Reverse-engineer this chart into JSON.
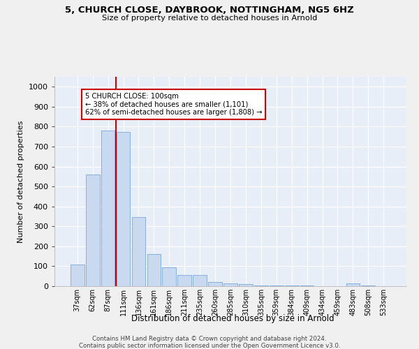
{
  "title1": "5, CHURCH CLOSE, DAYBROOK, NOTTINGHAM, NG5 6HZ",
  "title2": "Size of property relative to detached houses in Arnold",
  "xlabel": "Distribution of detached houses by size in Arnold",
  "ylabel": "Number of detached properties",
  "bar_labels": [
    "37sqm",
    "62sqm",
    "87sqm",
    "111sqm",
    "136sqm",
    "161sqm",
    "186sqm",
    "211sqm",
    "235sqm",
    "260sqm",
    "285sqm",
    "310sqm",
    "335sqm",
    "359sqm",
    "384sqm",
    "409sqm",
    "434sqm",
    "459sqm",
    "483sqm",
    "508sqm",
    "533sqm"
  ],
  "bar_values": [
    110,
    560,
    780,
    775,
    345,
    160,
    95,
    55,
    55,
    20,
    15,
    10,
    5,
    5,
    5,
    5,
    0,
    0,
    15,
    5,
    0
  ],
  "bar_color": "#c9d9f0",
  "bar_edge_color": "#7aa8d8",
  "vline_x": 2.5,
  "vline_color": "#cc0000",
  "annotation_text": "5 CHURCH CLOSE: 100sqm\n← 38% of detached houses are smaller (1,101)\n62% of semi-detached houses are larger (1,808) →",
  "annotation_box_color": "#ffffff",
  "annotation_box_edge": "#cc0000",
  "ylim": [
    0,
    1050
  ],
  "yticks": [
    0,
    100,
    200,
    300,
    400,
    500,
    600,
    700,
    800,
    900,
    1000
  ],
  "background_color": "#e8eef8",
  "grid_color": "#ffffff",
  "fig_background": "#f0f0f0",
  "footer1": "Contains HM Land Registry data © Crown copyright and database right 2024.",
  "footer2": "Contains public sector information licensed under the Open Government Licence v3.0."
}
